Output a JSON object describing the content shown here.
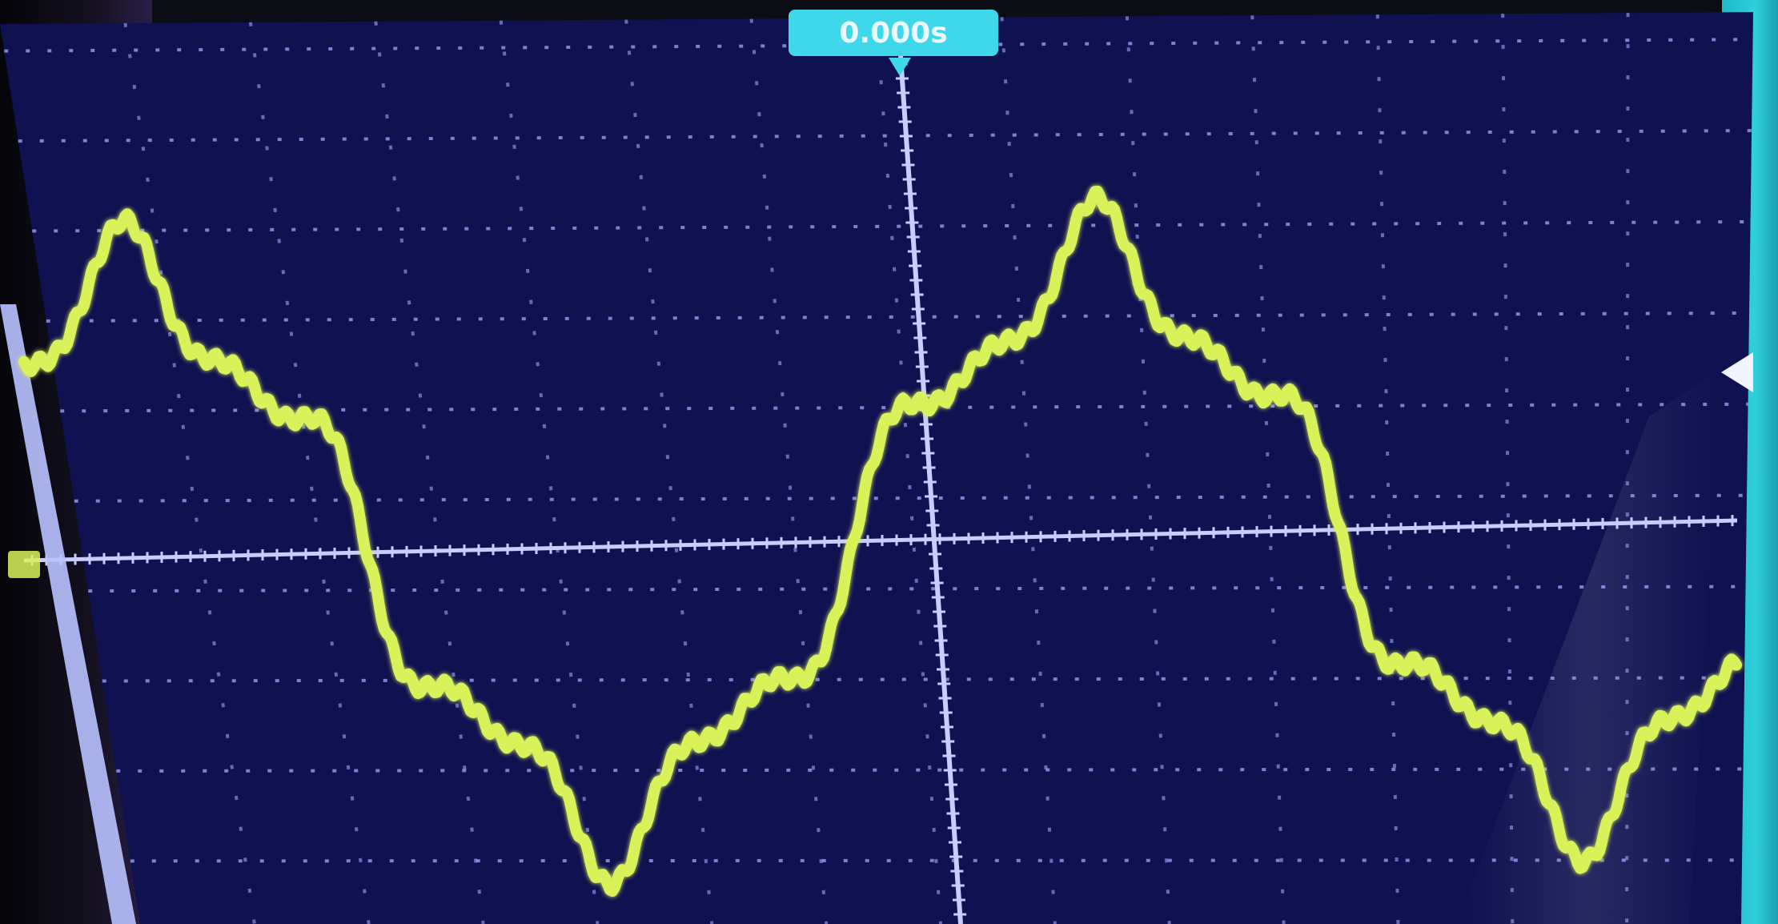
{
  "scope": {
    "trigger_readout": "0.000s",
    "background_color": "#0f1150",
    "grid_color": "#9ea8ff",
    "trace_color": "#d9f25a",
    "frame_color": "#b8c2ff"
  }
}
